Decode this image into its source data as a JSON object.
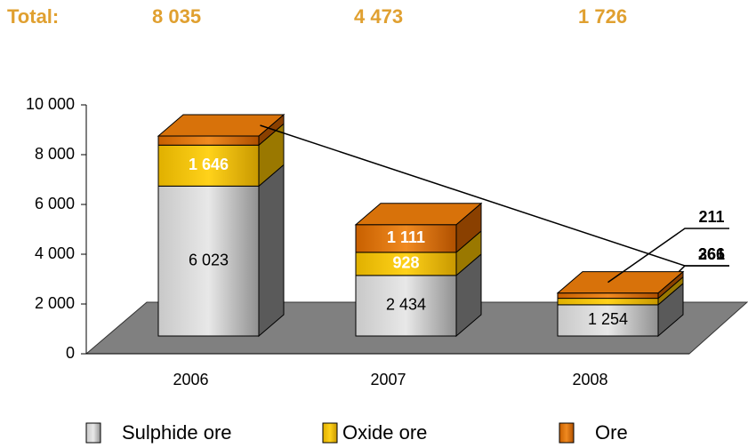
{
  "chart_data": {
    "type": "bar3d_stacked",
    "total_label": "Total:",
    "totals": [
      8035,
      4473,
      1726
    ],
    "total_labels": [
      "8 035",
      "4 473",
      "1 726"
    ],
    "categories": [
      "2006",
      "2007",
      "2008"
    ],
    "series": [
      {
        "name": "Sulphide ore",
        "color": "#a8a8a8",
        "values": [
          6023,
          2434,
          1254
        ],
        "value_labels": [
          "6 023",
          "2 434",
          "1 254"
        ]
      },
      {
        "name": "Oxide ore",
        "color": "#f2c200",
        "values": [
          1646,
          928,
          261
        ],
        "value_labels": [
          "1 646",
          "928",
          "261"
        ]
      },
      {
        "name": "Ore",
        "color": "#d8720a",
        "values": [
          366,
          1111,
          211
        ],
        "value_labels": [
          "366",
          "1 111",
          "211"
        ]
      }
    ],
    "ylim": [
      0,
      10000
    ],
    "yticks": [
      0,
      {
        "value": 2000,
        "label": "2 000"
      },
      {
        "value": 4000,
        "label": "4 000"
      },
      {
        "value": 6000,
        "label": "6 000"
      },
      {
        "value": 8000,
        "label": "8 000"
      },
      {
        "value": 10000,
        "label": "10 000"
      }
    ]
  }
}
